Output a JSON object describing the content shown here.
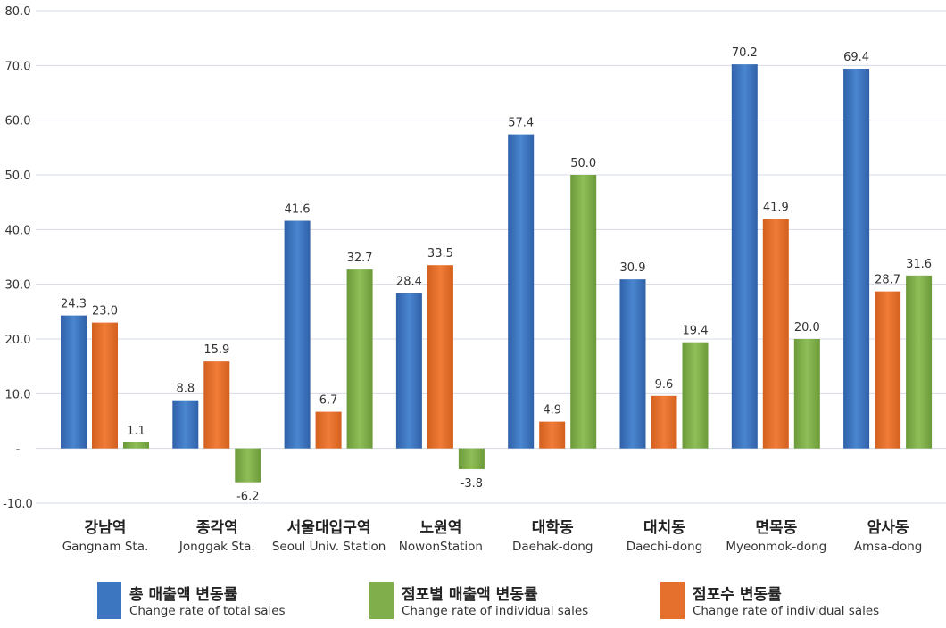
{
  "chart_data": {
    "type": "bar",
    "title": "",
    "xlabel": "",
    "ylabel": "",
    "ylim": [
      -10,
      80
    ],
    "yticks": [
      -10,
      0,
      10,
      20,
      30,
      40,
      50,
      60,
      70,
      80
    ],
    "ytick_labels": [
      "-10.0",
      "-",
      "10.0",
      "20.0",
      "30.0",
      "40.0",
      "50.0",
      "60.0",
      "70.0",
      "80.0"
    ],
    "grid": true,
    "categories": [
      {
        "ko": "강남역",
        "en": "Gangnam Sta."
      },
      {
        "ko": "종각역",
        "en": "Jonggak Sta."
      },
      {
        "ko": "서울대입구역",
        "en": "Seoul Univ. Station"
      },
      {
        "ko": "노원역",
        "en": "NowonStation"
      },
      {
        "ko": "대학동",
        "en": "Daehak-dong"
      },
      {
        "ko": "대치동",
        "en": "Daechi-dong"
      },
      {
        "ko": "면목동",
        "en": "Myeonmok-dong"
      },
      {
        "ko": "암사동",
        "en": "Amsa-dong"
      }
    ],
    "series": [
      {
        "name_ko": "총 매출액 변동률",
        "name_en": "Change rate of total sales",
        "color": "#3d76c0",
        "values": [
          24.3,
          8.8,
          41.6,
          28.4,
          57.4,
          30.9,
          70.2,
          69.4
        ]
      },
      {
        "name_ko": "점포수 변동률",
        "name_en": "Change rate of individual sales",
        "color": "#e5702d",
        "values": [
          23.0,
          15.9,
          6.7,
          33.5,
          4.9,
          9.6,
          41.9,
          28.7
        ]
      },
      {
        "name_ko": "점포별 매출액 변동률",
        "name_en": "Change rate of individual sales",
        "color": "#7fae4a",
        "values": [
          1.1,
          -6.2,
          32.7,
          -3.8,
          50.0,
          19.4,
          20.0,
          31.6
        ]
      }
    ],
    "legend": "bottom"
  },
  "legend_items": [
    {
      "ko": "총 매출액 변동률",
      "en": "Change rate of total sales",
      "color": "#3d76c0"
    },
    {
      "ko": "점포별 매출액 변동률",
      "en": "Change rate of individual sales",
      "color": "#7fae4a"
    },
    {
      "ko": "점포수 변동률",
      "en": "Change rate of individual sales",
      "color": "#e5702d"
    }
  ]
}
